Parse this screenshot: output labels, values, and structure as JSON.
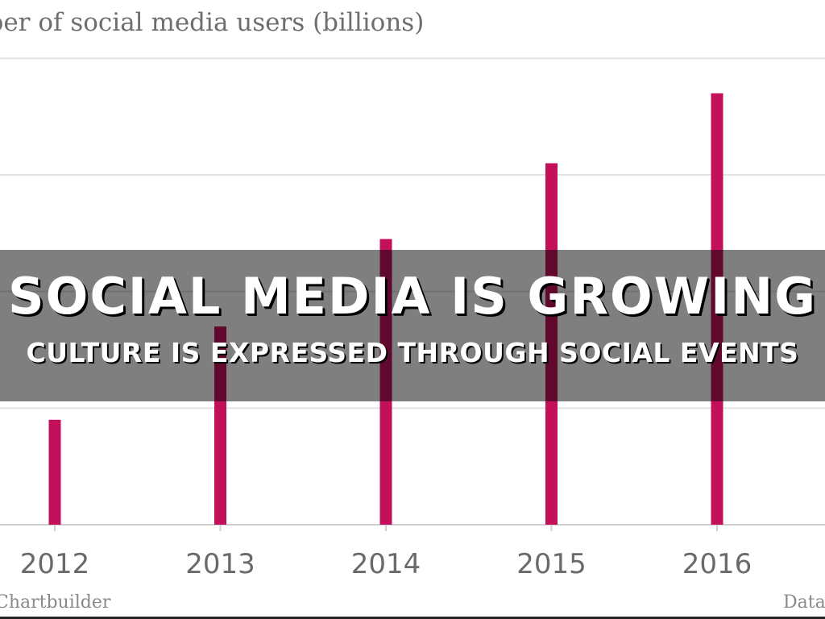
{
  "chart_data": {
    "type": "bar",
    "title": "Number of social media users (billions)",
    "categories": [
      "2012",
      "2013",
      "2014",
      "2015",
      "2016"
    ],
    "values": [
      0.9,
      1.7,
      2.45,
      3.1,
      3.7
    ],
    "ylim": [
      0,
      4.5
    ],
    "grid": true,
    "bar_color": "#c2105a",
    "source_left": "Chartbuilder",
    "source_right": "Data"
  },
  "overlay": {
    "headline": "SOCIAL MEDIA IS GROWING",
    "subline": "CULTURE IS EXPRESSED THROUGH SOCIAL EVENTS"
  }
}
